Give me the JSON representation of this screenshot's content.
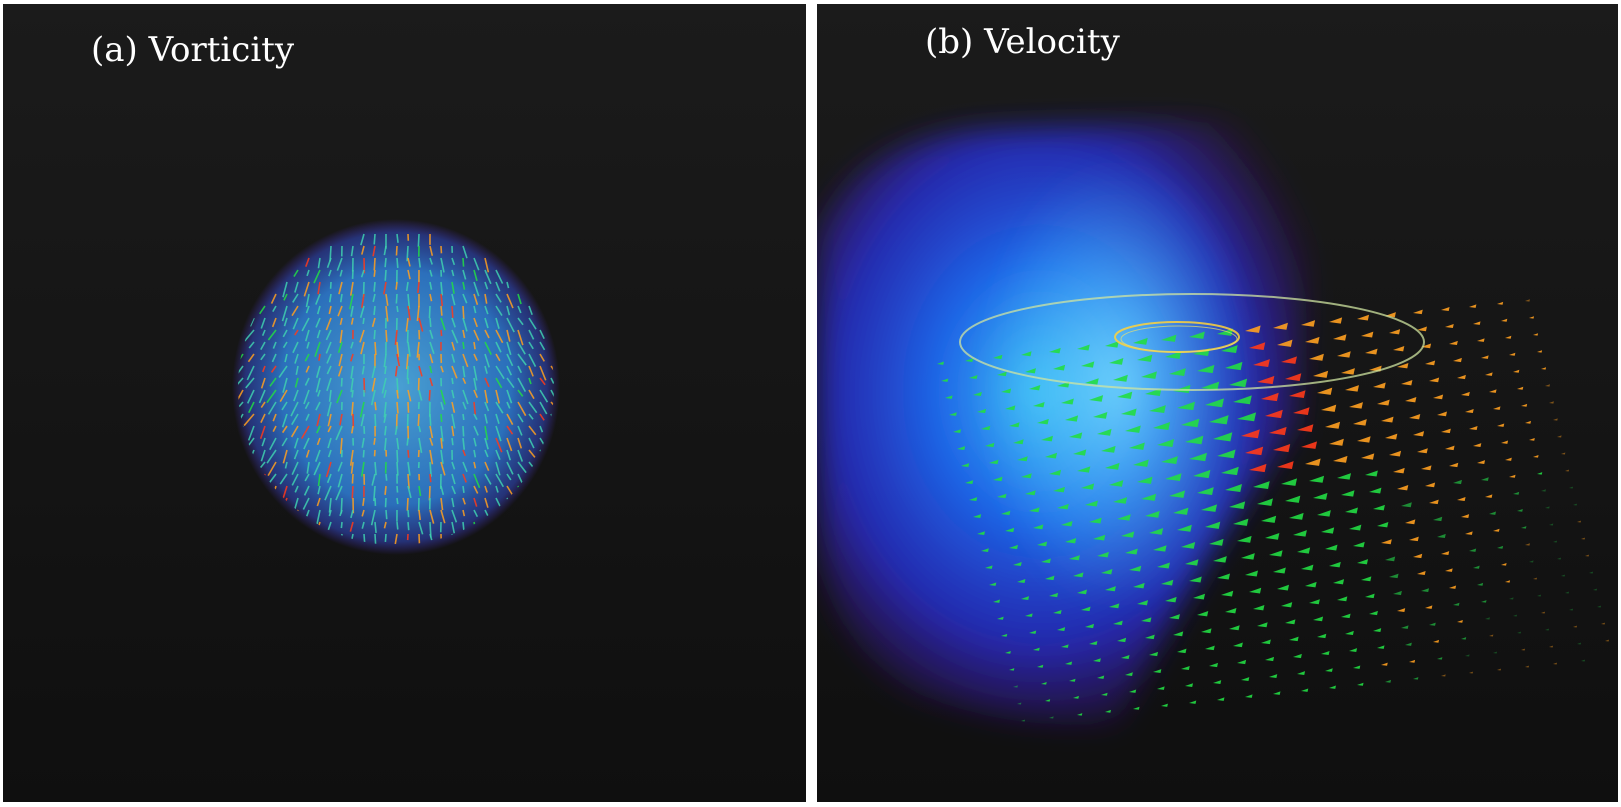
{
  "panels": [
    {
      "label": "(a) Vorticity",
      "colors": {
        "glow": "#2f7fd8",
        "halo": "#4b2fc2"
      }
    },
    {
      "label": "(b) Velocity",
      "colors": {
        "volume_outer": "#5a14c8",
        "volume_inner": "#1f6fff",
        "core": "#3fc6ff"
      }
    }
  ],
  "colors": {
    "arrow_low": "#22dd44",
    "arrow_mid": "#ffa020",
    "arrow_high": "#ff3a1a",
    "streamline": "#ffd23a"
  }
}
